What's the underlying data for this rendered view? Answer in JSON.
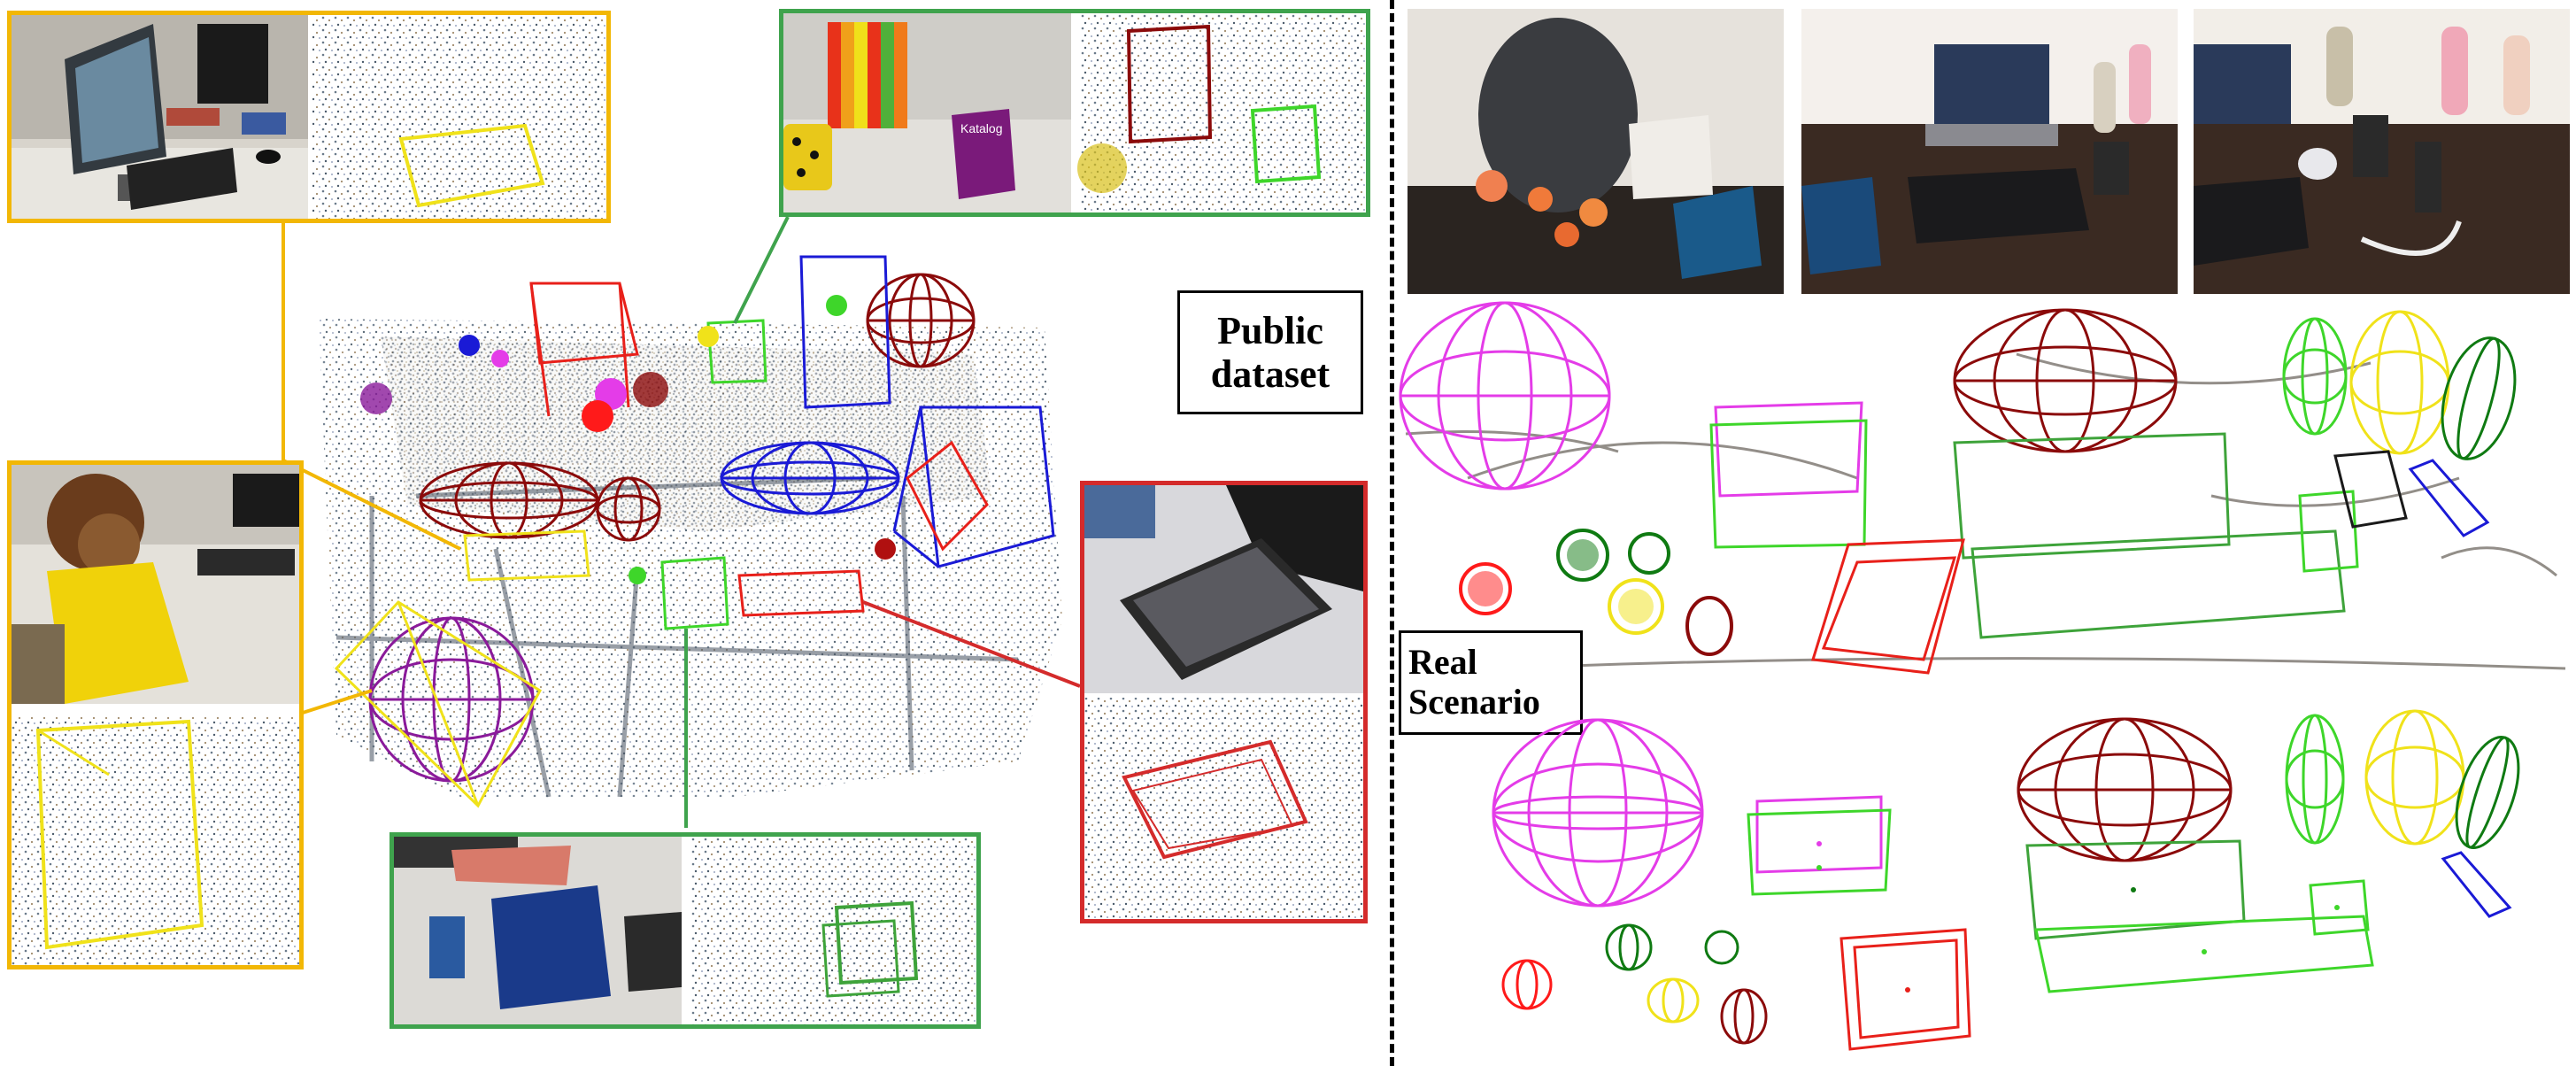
{
  "labels": {
    "public_dataset": [
      "Public",
      "dataset"
    ],
    "real_scenario": [
      "Real",
      "Scenario"
    ]
  },
  "colors": {
    "yellow_inset": "#f2b705",
    "green_inset": "#3fa34d",
    "red_inset": "#d42b2b",
    "magenta": "#e43ce8",
    "dark_red": "#8b0a0a",
    "blue": "#1a1ad6",
    "bright_green": "#3ed62a",
    "dark_green": "#0f7a12",
    "red": "#ff1a1a",
    "yellow": "#f0e21a",
    "purple": "#8a1a9a"
  },
  "photo_texts": {
    "catalog_cover": "Katalog"
  }
}
